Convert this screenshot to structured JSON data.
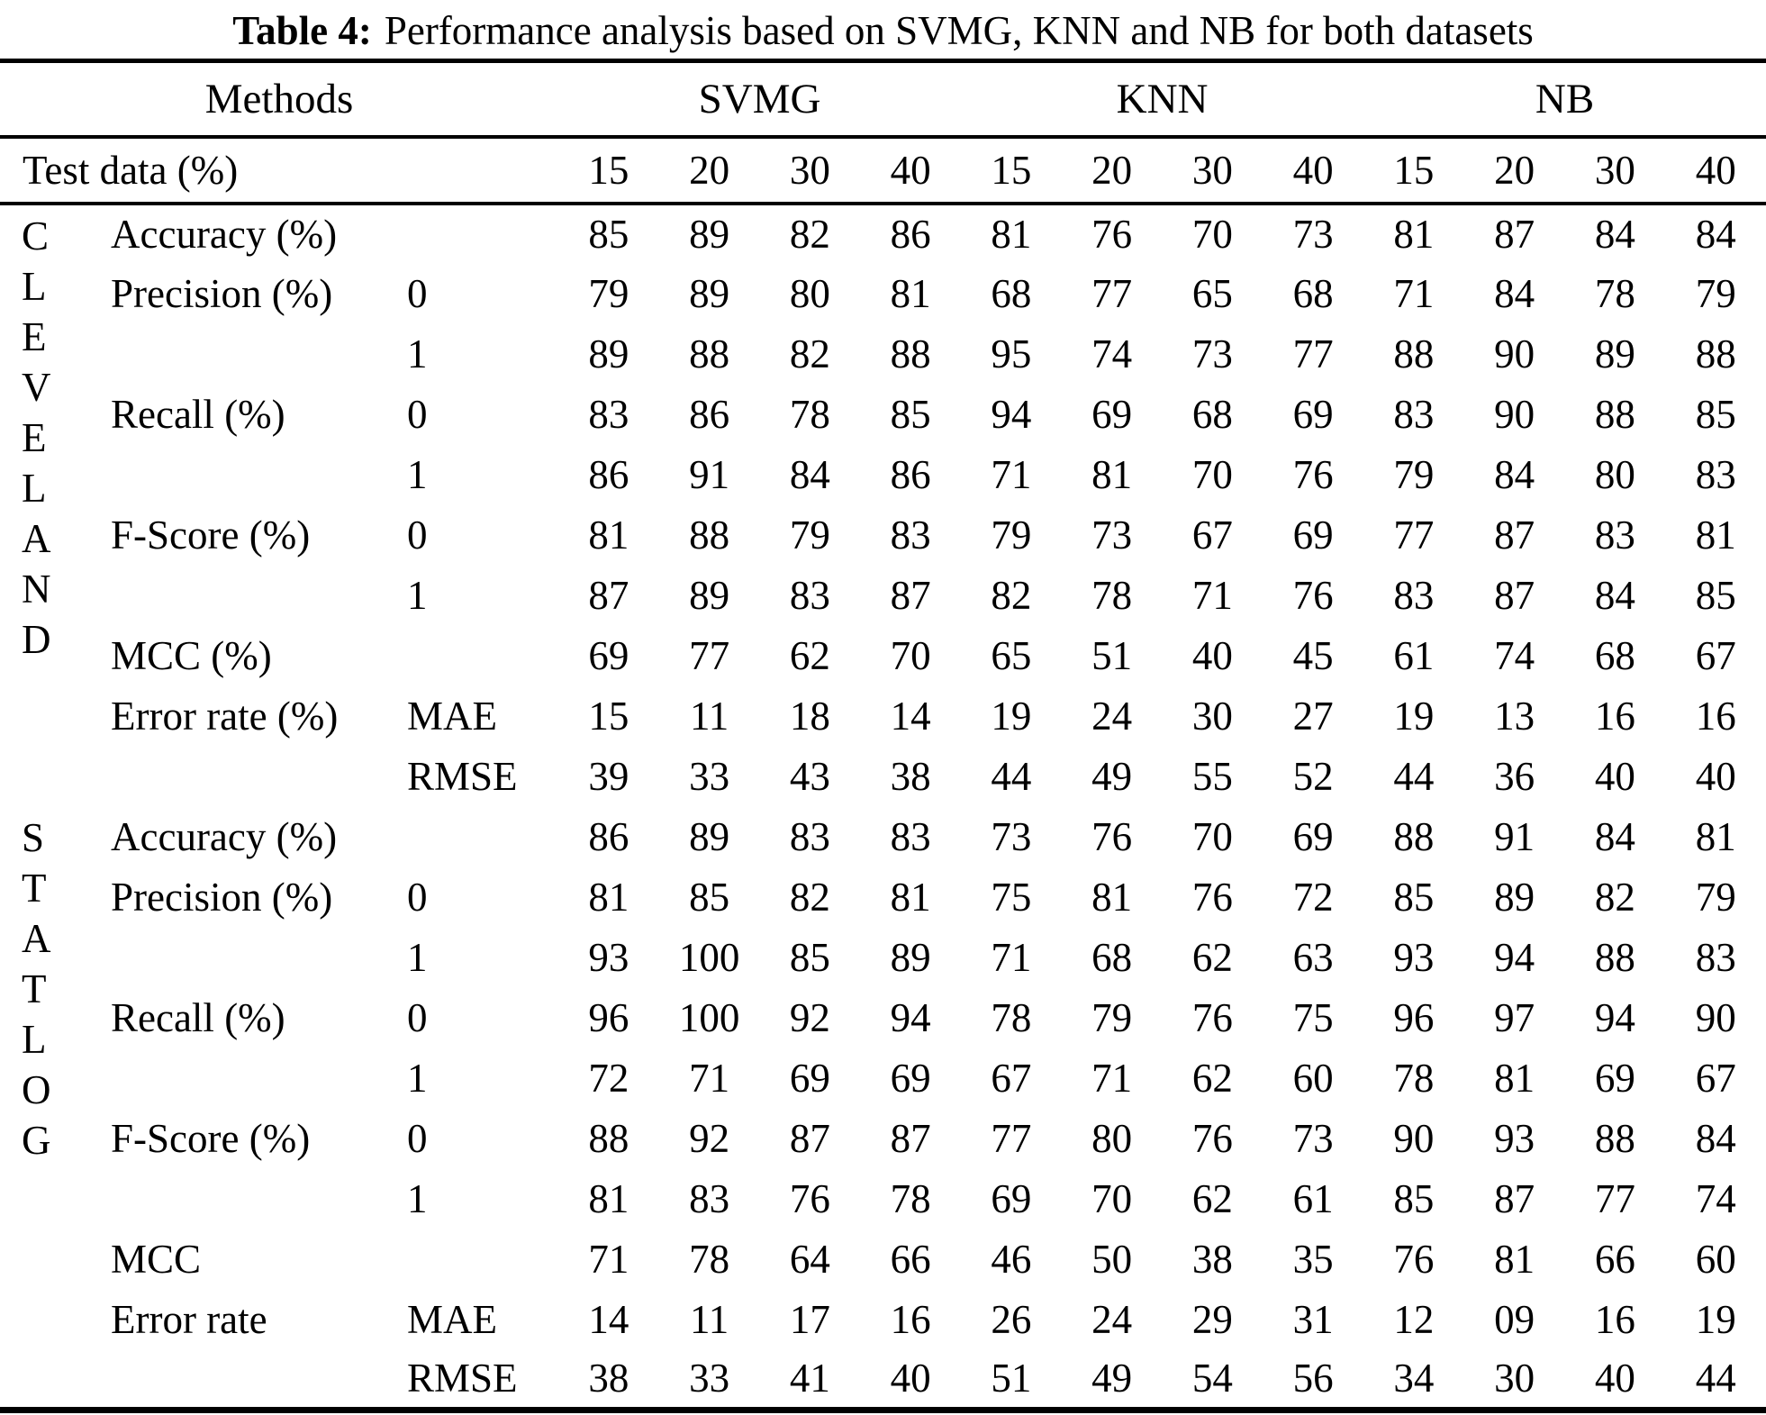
{
  "title": {
    "label": "Table 4:",
    "text": "Performance analysis based on SVMG, KNN and NB for both datasets"
  },
  "header": {
    "methods": "Methods",
    "groups": [
      "SVMG",
      "KNN",
      "NB"
    ]
  },
  "test_data": {
    "label": "Test data (%)",
    "values": [
      "15",
      "20",
      "30",
      "40",
      "15",
      "20",
      "30",
      "40",
      "15",
      "20",
      "30",
      "40"
    ]
  },
  "chart_data": {
    "type": "table",
    "title": "Table 4: Performance analysis based on SVMG, KNN and NB for both datasets",
    "column_groups": [
      "SVMG",
      "KNN",
      "NB"
    ],
    "test_data_percent": [
      15,
      20,
      30,
      40
    ],
    "datasets": [
      "CLEVELAND",
      "STATLOG"
    ]
  },
  "sections": [
    {
      "name": "CLEVELAND",
      "letters": "C\nL\nE\nV\nE\nL\nA\nN\nD",
      "rows": [
        {
          "metric": "Accuracy (%)",
          "sub": "",
          "values": [
            "85",
            "89",
            "82",
            "86",
            "81",
            "76",
            "70",
            "73",
            "81",
            "87",
            "84",
            "84"
          ]
        },
        {
          "metric": "Precision (%)",
          "sub": "0",
          "values": [
            "79",
            "89",
            "80",
            "81",
            "68",
            "77",
            "65",
            "68",
            "71",
            "84",
            "78",
            "79"
          ]
        },
        {
          "metric": "",
          "sub": "1",
          "values": [
            "89",
            "88",
            "82",
            "88",
            "95",
            "74",
            "73",
            "77",
            "88",
            "90",
            "89",
            "88"
          ]
        },
        {
          "metric": "Recall (%)",
          "sub": "0",
          "values": [
            "83",
            "86",
            "78",
            "85",
            "94",
            "69",
            "68",
            "69",
            "83",
            "90",
            "88",
            "85"
          ]
        },
        {
          "metric": "",
          "sub": "1",
          "values": [
            "86",
            "91",
            "84",
            "86",
            "71",
            "81",
            "70",
            "76",
            "79",
            "84",
            "80",
            "83"
          ]
        },
        {
          "metric": "F-Score (%)",
          "sub": "0",
          "values": [
            "81",
            "88",
            "79",
            "83",
            "79",
            "73",
            "67",
            "69",
            "77",
            "87",
            "83",
            "81"
          ]
        },
        {
          "metric": "",
          "sub": "1",
          "values": [
            "87",
            "89",
            "83",
            "87",
            "82",
            "78",
            "71",
            "76",
            "83",
            "87",
            "84",
            "85"
          ]
        },
        {
          "metric": "MCC (%)",
          "sub": "",
          "values": [
            "69",
            "77",
            "62",
            "70",
            "65",
            "51",
            "40",
            "45",
            "61",
            "74",
            "68",
            "67"
          ]
        },
        {
          "metric": "Error rate (%)",
          "sub": "MAE",
          "values": [
            "15",
            "11",
            "18",
            "14",
            "19",
            "24",
            "30",
            "27",
            "19",
            "13",
            "16",
            "16"
          ]
        },
        {
          "metric": "",
          "sub": "RMSE",
          "values": [
            "39",
            "33",
            "43",
            "38",
            "44",
            "49",
            "55",
            "52",
            "44",
            "36",
            "40",
            "40"
          ]
        }
      ]
    },
    {
      "name": "STATLOG",
      "letters": "S\nT\nA\nT\nL\nO\nG",
      "rows": [
        {
          "metric": "Accuracy (%)",
          "sub": "",
          "values": [
            "86",
            "89",
            "83",
            "83",
            "73",
            "76",
            "70",
            "69",
            "88",
            "91",
            "84",
            "81"
          ]
        },
        {
          "metric": "Precision (%)",
          "sub": "0",
          "values": [
            "81",
            "85",
            "82",
            "81",
            "75",
            "81",
            "76",
            "72",
            "85",
            "89",
            "82",
            "79"
          ]
        },
        {
          "metric": "",
          "sub": "1",
          "values": [
            "93",
            "100",
            "85",
            "89",
            "71",
            "68",
            "62",
            "63",
            "93",
            "94",
            "88",
            "83"
          ]
        },
        {
          "metric": "Recall (%)",
          "sub": "0",
          "values": [
            "96",
            "100",
            "92",
            "94",
            "78",
            "79",
            "76",
            "75",
            "96",
            "97",
            "94",
            "90"
          ]
        },
        {
          "metric": "",
          "sub": "1",
          "values": [
            "72",
            "71",
            "69",
            "69",
            "67",
            "71",
            "62",
            "60",
            "78",
            "81",
            "69",
            "67"
          ]
        },
        {
          "metric": "F-Score (%)",
          "sub": "0",
          "values": [
            "88",
            "92",
            "87",
            "87",
            "77",
            "80",
            "76",
            "73",
            "90",
            "93",
            "88",
            "84"
          ]
        },
        {
          "metric": "",
          "sub": "1",
          "values": [
            "81",
            "83",
            "76",
            "78",
            "69",
            "70",
            "62",
            "61",
            "85",
            "87",
            "77",
            "74"
          ]
        },
        {
          "metric": "MCC",
          "sub": "",
          "values": [
            "71",
            "78",
            "64",
            "66",
            "46",
            "50",
            "38",
            "35",
            "76",
            "81",
            "66",
            "60"
          ]
        },
        {
          "metric": "Error rate",
          "sub": "MAE",
          "values": [
            "14",
            "11",
            "17",
            "16",
            "26",
            "24",
            "29",
            "31",
            "12",
            "09",
            "16",
            "19"
          ]
        },
        {
          "metric": "",
          "sub": "RMSE",
          "values": [
            "38",
            "33",
            "41",
            "40",
            "51",
            "49",
            "54",
            "56",
            "34",
            "30",
            "40",
            "44"
          ]
        }
      ]
    }
  ]
}
